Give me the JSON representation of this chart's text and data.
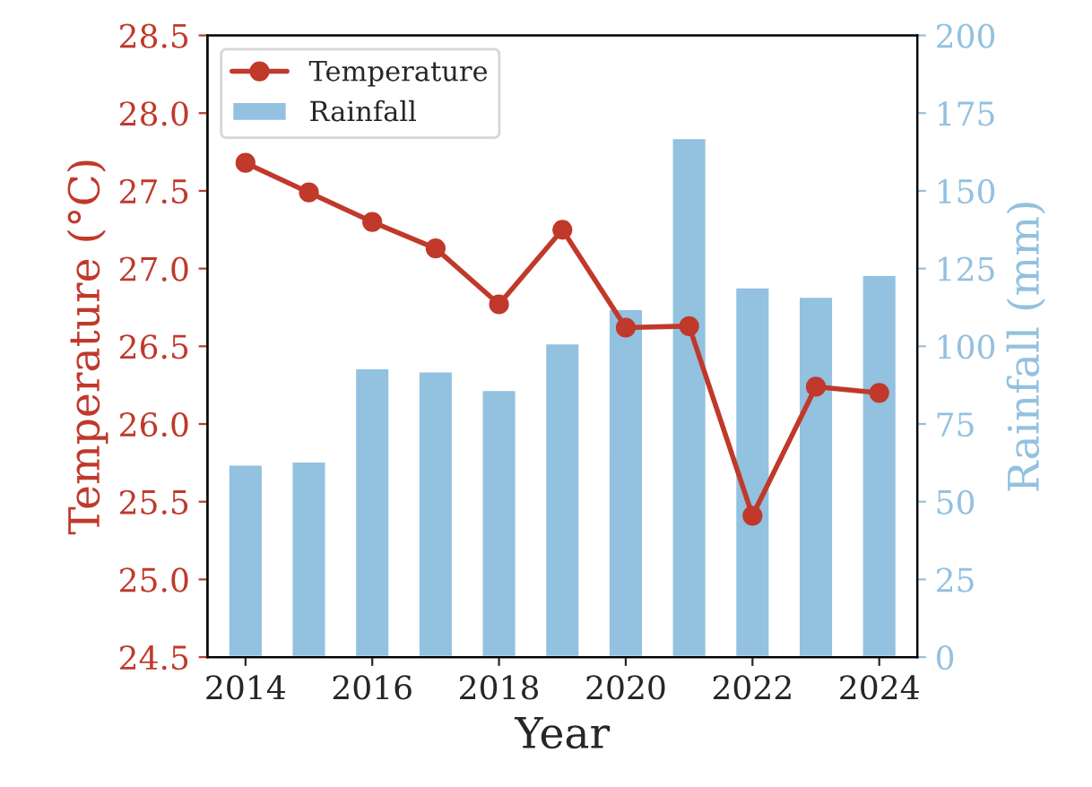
{
  "chart_data": {
    "type": "bar",
    "xlabel": "Year",
    "ylabel": "Temperature (°C)",
    "y2label": "Rainfall (mm)",
    "x": [
      2014,
      2015,
      2016,
      2017,
      2018,
      2019,
      2020,
      2021,
      2022,
      2023,
      2024
    ],
    "series": [
      {
        "name": "Temperature",
        "type": "line",
        "color": "#c0392b",
        "marker": "circle",
        "line_style": "solid",
        "values": [
          27.68,
          27.49,
          27.3,
          27.13,
          26.77,
          27.25,
          26.62,
          26.63,
          25.41,
          26.24,
          26.2
        ]
      },
      {
        "name": "Rainfall",
        "axis": "y2",
        "color": "#93c1e0",
        "values": [
          62,
          63,
          93,
          92,
          86,
          101,
          112,
          167,
          119,
          116,
          123
        ]
      }
    ],
    "xlim": [
      2013.4,
      2024.6
    ],
    "xticks": [
      2014,
      2016,
      2018,
      2020,
      2022,
      2024
    ],
    "ylim": [
      24.5,
      28.5
    ],
    "yticks": [
      {
        "value": 24.5,
        "label": "24.5"
      },
      {
        "value": 25.0,
        "label": "25.0"
      },
      {
        "value": 25.5,
        "label": "25.5"
      },
      {
        "value": 26.0,
        "label": "26.0"
      },
      {
        "value": 26.5,
        "label": "26.5"
      },
      {
        "value": 27.0,
        "label": "27.0"
      },
      {
        "value": 27.5,
        "label": "27.5"
      },
      {
        "value": 28.0,
        "label": "28.0"
      },
      {
        "value": 28.5,
        "label": "28.5"
      }
    ],
    "y2lim": [
      0,
      200
    ],
    "y2ticks": [
      0,
      25,
      50,
      75,
      100,
      125,
      150,
      175,
      200
    ],
    "grid": false,
    "legend": "top left"
  }
}
